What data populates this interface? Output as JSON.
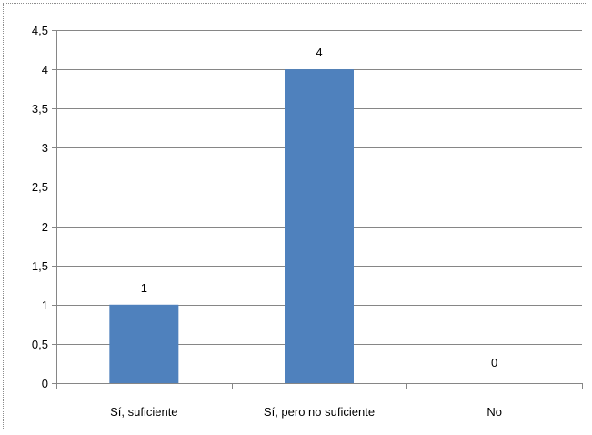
{
  "chart_data": {
    "type": "bar",
    "categories": [
      "Sí, suficiente",
      "Sí, pero no suficiente",
      "No"
    ],
    "values": [
      1,
      4,
      0
    ],
    "data_labels": [
      "1",
      "4",
      "0"
    ],
    "title": "",
    "xlabel": "",
    "ylabel": "",
    "ylim": [
      0,
      4.5
    ],
    "yticks": [
      0,
      0.5,
      1,
      1.5,
      2,
      2.5,
      3,
      3.5,
      4,
      4.5
    ],
    "ytick_labels": [
      "0",
      "0,5",
      "1",
      "1,5",
      "2",
      "2,5",
      "3",
      "3,5",
      "4",
      "4,5"
    ],
    "grid": true,
    "legend": "none",
    "bar_color": "#4f81bd",
    "grid_color": "#868686"
  }
}
